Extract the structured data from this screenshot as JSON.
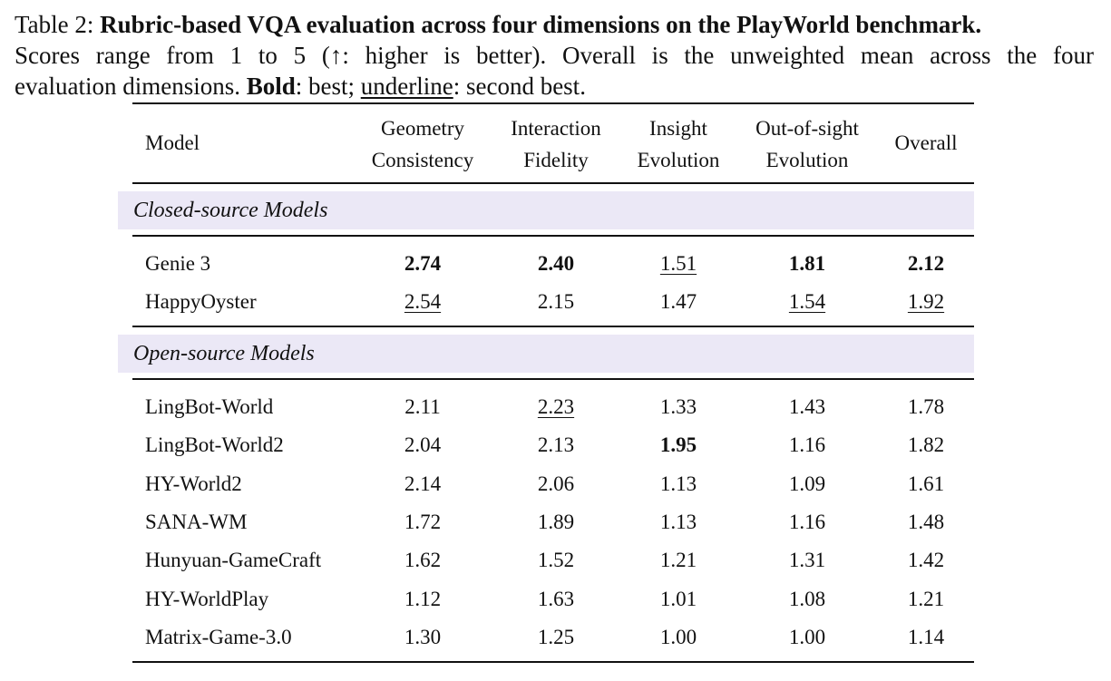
{
  "caption": {
    "label": "Table 2: ",
    "title": "Rubric-based VQA evaluation across four dimensions on the PlayWorld benchmark.",
    "line2": "Scores range from 1 to 5 (↑: higher is better). Overall is the unweighted mean across the four",
    "line3_a": "evaluation dimensions. ",
    "line3_bold": "Bold",
    "line3_b": ": best; ",
    "line3_ul": "underline",
    "line3_c": ": second best."
  },
  "table": {
    "headers": {
      "model": "Model",
      "c1_l1": "Geometry",
      "c1_l2": "Consistency",
      "c2_l1": "Interaction",
      "c2_l2": "Fidelity",
      "c3_l1": "Insight",
      "c3_l2": "Evolution",
      "c4_l1": "Out-of-sight",
      "c4_l2": "Evolution",
      "overall": "Overall"
    },
    "groups": [
      {
        "label": "Closed-source Models",
        "rows": [
          {
            "model": "Genie 3",
            "vals": [
              "2.74",
              "2.40",
              "1.51",
              "1.81",
              "2.12"
            ],
            "fmt": [
              "b",
              "b",
              "u",
              "b",
              "b"
            ]
          },
          {
            "model": "HappyOyster",
            "vals": [
              "2.54",
              "2.15",
              "1.47",
              "1.54",
              "1.92"
            ],
            "fmt": [
              "u",
              "",
              "",
              "u",
              "u"
            ]
          }
        ]
      },
      {
        "label": "Open-source Models",
        "rows": [
          {
            "model": "LingBot-World",
            "vals": [
              "2.11",
              "2.23",
              "1.33",
              "1.43",
              "1.78"
            ],
            "fmt": [
              "",
              "u",
              "",
              "",
              ""
            ]
          },
          {
            "model": "LingBot-World2",
            "vals": [
              "2.04",
              "2.13",
              "1.95",
              "1.16",
              "1.82"
            ],
            "fmt": [
              "",
              "",
              "b",
              "",
              ""
            ]
          },
          {
            "model": "HY-World2",
            "vals": [
              "2.14",
              "2.06",
              "1.13",
              "1.09",
              "1.61"
            ],
            "fmt": [
              "",
              "",
              "",
              "",
              ""
            ]
          },
          {
            "model": "SANA-WM",
            "vals": [
              "1.72",
              "1.89",
              "1.13",
              "1.16",
              "1.48"
            ],
            "fmt": [
              "",
              "",
              "",
              "",
              ""
            ]
          },
          {
            "model": "Hunyuan-GameCraft",
            "vals": [
              "1.62",
              "1.52",
              "1.21",
              "1.31",
              "1.42"
            ],
            "fmt": [
              "",
              "",
              "",
              "",
              ""
            ]
          },
          {
            "model": "HY-WorldPlay",
            "vals": [
              "1.12",
              "1.63",
              "1.01",
              "1.08",
              "1.21"
            ],
            "fmt": [
              "",
              "",
              "",
              "",
              ""
            ]
          },
          {
            "model": "Matrix-Game-3.0",
            "vals": [
              "1.30",
              "1.25",
              "1.00",
              "1.00",
              "1.14"
            ],
            "fmt": [
              "",
              "",
              "",
              "",
              ""
            ]
          }
        ]
      }
    ]
  }
}
